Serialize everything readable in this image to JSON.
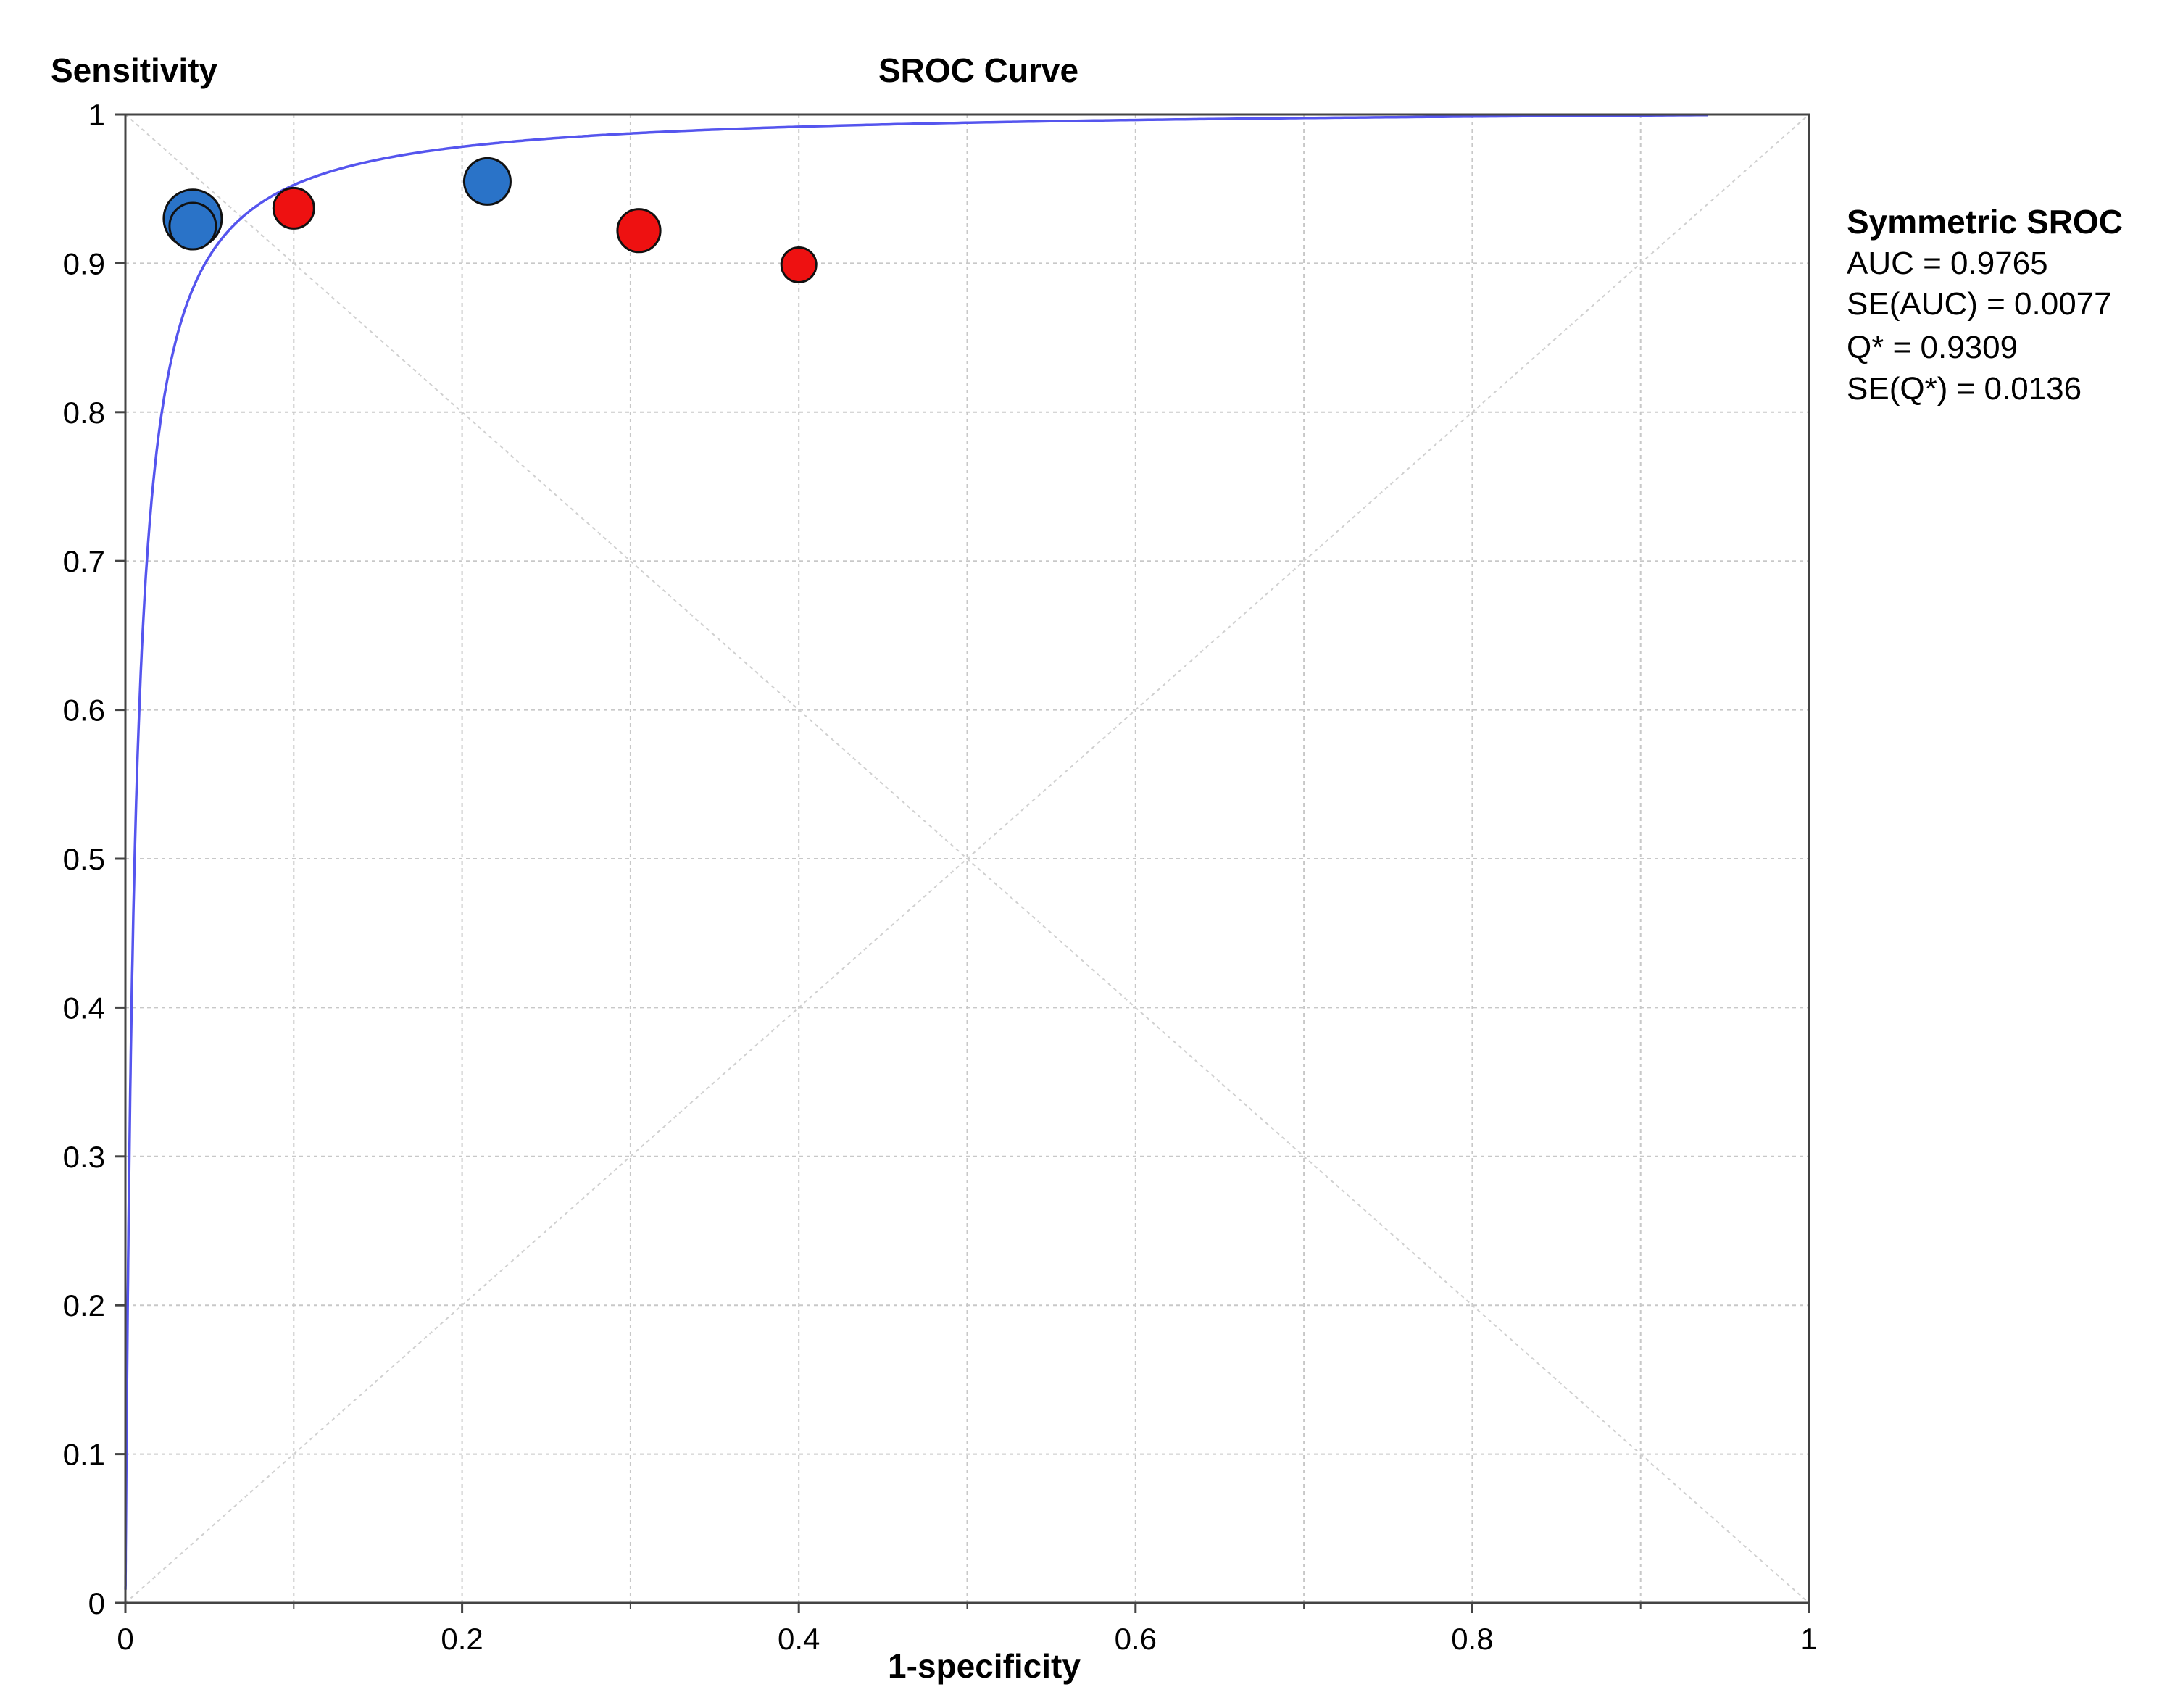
{
  "chart_data": {
    "type": "scatter",
    "title": "SROC Curve",
    "xlabel": "1-specificity",
    "ylabel": "Sensitivity",
    "xlim": [
      0,
      1
    ],
    "ylim": [
      0,
      1
    ],
    "grid": true,
    "x_ticks": [
      "0",
      "0.2",
      "0.4",
      "0.6",
      "0.8",
      "1"
    ],
    "y_ticks": [
      "0",
      "0.1",
      "0.2",
      "0.3",
      "0.4",
      "0.5",
      "0.6",
      "0.7",
      "0.8",
      "0.9",
      "1"
    ],
    "colors": {
      "curve": "#5555ee",
      "grid": "#c8c8c8",
      "blue": "#2a73c8",
      "red": "#ee1111",
      "axis": "#444444"
    },
    "curve": {
      "auc": 0.9765,
      "x_end": 0.94
    },
    "points": [
      {
        "x": 0.04,
        "y": 0.93,
        "color": "blue",
        "weight": 3
      },
      {
        "x": 0.04,
        "y": 0.925,
        "color": "blue",
        "weight": 2
      },
      {
        "x": 0.215,
        "y": 0.955,
        "color": "blue",
        "weight": 2
      },
      {
        "x": 0.1,
        "y": 0.937,
        "color": "red",
        "weight": 1.5
      },
      {
        "x": 0.305,
        "y": 0.922,
        "color": "red",
        "weight": 1.7
      },
      {
        "x": 0.4,
        "y": 0.899,
        "color": "red",
        "weight": 1
      }
    ],
    "legend": {
      "placement": "right",
      "title": "Symmetric SROC",
      "lines": [
        "AUC = 0.9765",
        "SE(AUC) = 0.0077",
        "Q* = 0.9309",
        "SE(Q*) = 0.0136"
      ]
    }
  }
}
